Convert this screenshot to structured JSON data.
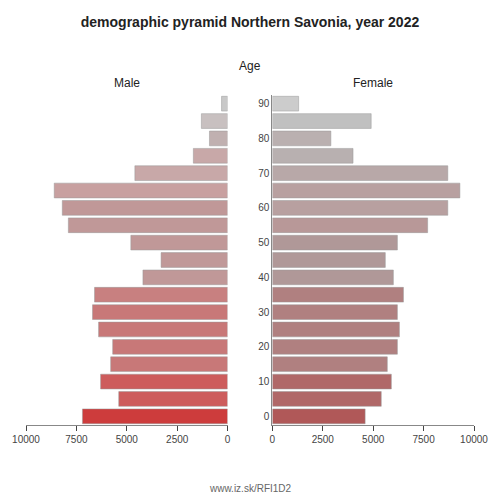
{
  "chart_data": {
    "type": "bar",
    "orientation": "horizontal",
    "title": "demographic pyramid Northern Savonia, year 2022",
    "ylabel": "Age",
    "annotations": [
      "www.iz.sk/RFI1D2"
    ],
    "categories": [
      "0",
      null,
      "10",
      null,
      "20",
      null,
      "30",
      null,
      "40",
      null,
      "50",
      null,
      "60",
      null,
      "70",
      null,
      "80",
      null,
      "90"
    ],
    "series": [
      {
        "name": "Male",
        "values": [
          7200,
          5400,
          6300,
          5800,
          5700,
          6400,
          6700,
          6600,
          4200,
          3300,
          4800,
          7900,
          8200,
          8600,
          4600,
          1700,
          900,
          1300,
          300
        ],
        "colors": [
          "#cd3c3c",
          "#cd5c5c",
          "#cd5c5c",
          "#c87878",
          "#c87878",
          "#c87878",
          "#c87878",
          "#c88080",
          "#c09898",
          "#c09898",
          "#c09898",
          "#c09898",
          "#c09898",
          "#c8a0a0",
          "#c8a8a8",
          "#c8a8a8",
          "#c0b0b0",
          "#c8c0c0",
          "#c8c8c8"
        ]
      },
      {
        "name": "Female",
        "values": [
          4600,
          5400,
          5900,
          5700,
          6200,
          6300,
          6200,
          6500,
          6000,
          5600,
          6200,
          7700,
          8700,
          9300,
          8700,
          4000,
          2900,
          4900,
          1300
        ],
        "colors": [
          "#b05858",
          "#b06868",
          "#b06868",
          "#b08080",
          "#b08080",
          "#b08080",
          "#b08080",
          "#b08080",
          "#b09898",
          "#b09898",
          "#b09898",
          "#b89898",
          "#b8a0a0",
          "#b8a0a0",
          "#b8a8a8",
          "#b8b0b0",
          "#bab0b0",
          "#c0c0c0",
          "#cccccc"
        ]
      }
    ],
    "xlim": [
      0,
      10000
    ],
    "xticks": [
      0,
      2500,
      5000,
      7500,
      10000
    ],
    "grid": false
  }
}
